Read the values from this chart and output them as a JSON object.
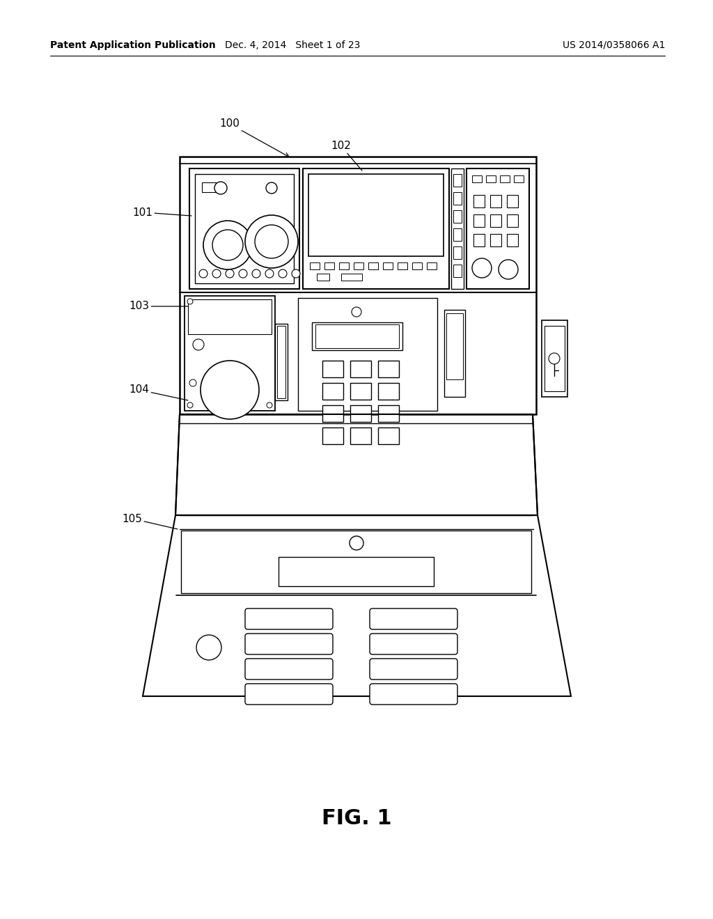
{
  "header_left": "Patent Application Publication",
  "header_mid": "Dec. 4, 2014   Sheet 1 of 23",
  "header_right": "US 2014/0358066 A1",
  "footer_label": "FIG. 1",
  "bg_color": "#ffffff",
  "line_color": "#000000",
  "label_color": "#000000"
}
